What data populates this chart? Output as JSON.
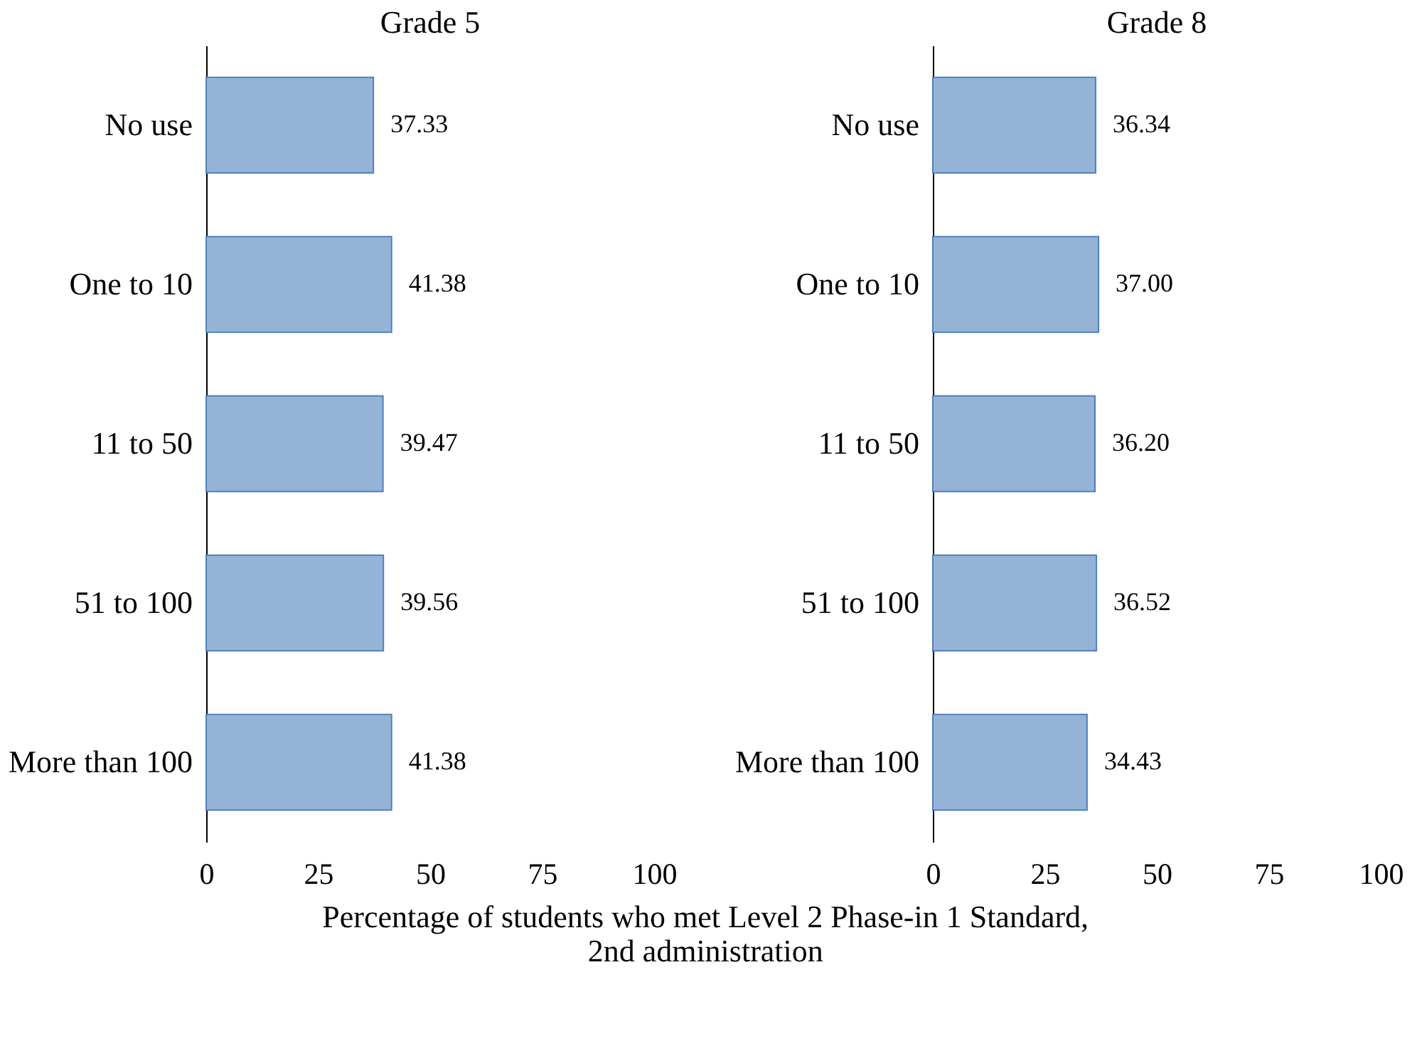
{
  "chart_data": [
    {
      "type": "bar",
      "orientation": "horizontal",
      "title": "Grade 5",
      "xlabel": "Percentage of students who met Level 2 Phase-in 1 Standard, 2nd administration",
      "categories": [
        "No use",
        "One to 10",
        "11 to 50",
        "51 to 100",
        "More than 100"
      ],
      "values": [
        37.33,
        41.38,
        39.47,
        39.56,
        41.38
      ],
      "value_labels": [
        "37.33",
        "41.38",
        "39.47",
        "39.56",
        "41.38"
      ],
      "color": "#95b3d7",
      "xlim": [
        0,
        100
      ],
      "xticks": [
        0,
        25,
        50,
        75,
        100
      ],
      "grid": false
    },
    {
      "type": "bar",
      "orientation": "horizontal",
      "title": "Grade 8",
      "categories": [
        "No use",
        "One to 10",
        "11 to 50",
        "51 to 100",
        "More than 100"
      ],
      "values": [
        36.34,
        37.0,
        36.2,
        36.52,
        34.43
      ],
      "value_labels": [
        "36.34",
        "37.00",
        "36.20",
        "36.52",
        "34.43"
      ],
      "color": "#95b3d7",
      "xlim": [
        0,
        100
      ],
      "xticks": [
        0,
        25,
        50,
        75,
        100
      ],
      "grid": false
    }
  ]
}
